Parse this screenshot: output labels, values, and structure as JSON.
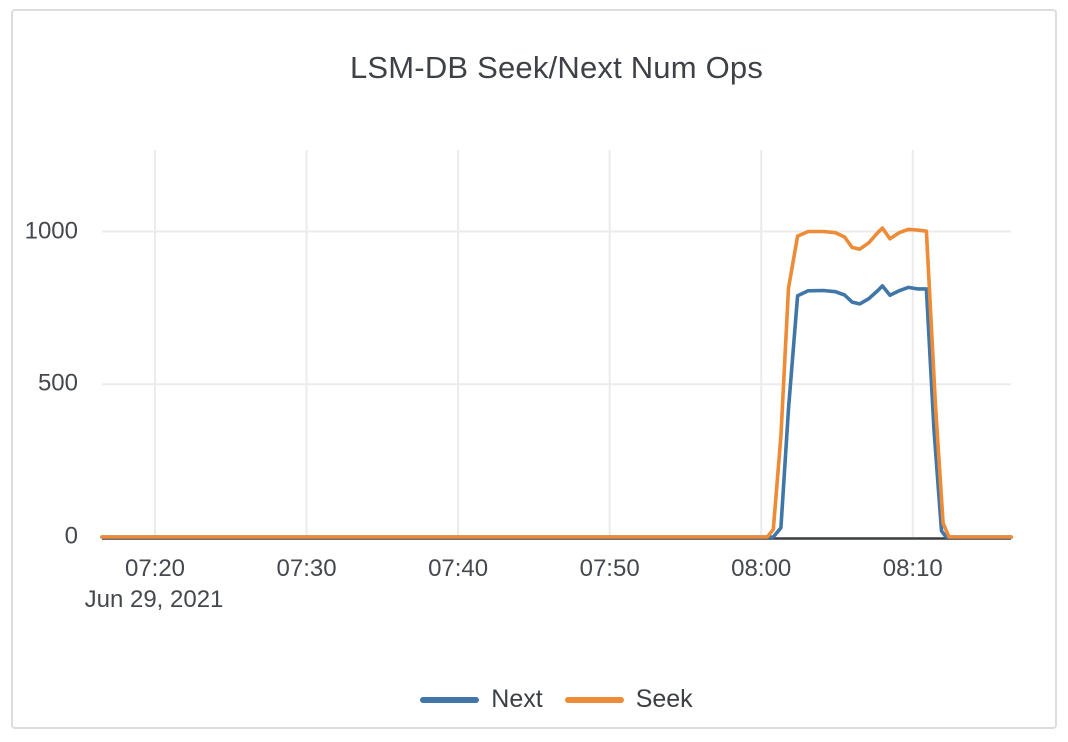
{
  "panel": {
    "background": "#ffffff",
    "border_color": "#dcdde0"
  },
  "chart_data": {
    "type": "line",
    "title": "LSM-DB Seek/Next Num Ops",
    "grid": true,
    "legend_position": "bottom-center",
    "colors": {
      "grid": "#ebebeb",
      "zeroline": "#3a3d40",
      "text": "#45484c"
    },
    "x_axis": {
      "unit": "time (minutes after 07:00), Jun 29, 2021",
      "date_label": "Jun 29, 2021",
      "range_minutes": [
        16.5,
        76.5
      ],
      "ticks": [
        {
          "t": 20,
          "label": "07:20"
        },
        {
          "t": 30,
          "label": "07:30"
        },
        {
          "t": 40,
          "label": "07:40"
        },
        {
          "t": 50,
          "label": "07:50"
        },
        {
          "t": 60,
          "label": "08:00"
        },
        {
          "t": 70,
          "label": "08:10"
        }
      ]
    },
    "y_axis": {
      "range": [
        0,
        1265
      ],
      "ticks": [
        {
          "v": 0,
          "label": "0"
        },
        {
          "v": 500,
          "label": "500"
        },
        {
          "v": 1000,
          "label": "1000"
        }
      ]
    },
    "series": [
      {
        "name": "Next",
        "color": "#4076A8",
        "points": [
          [
            16.5,
            0
          ],
          [
            20,
            0
          ],
          [
            24,
            0
          ],
          [
            28,
            0
          ],
          [
            32,
            0
          ],
          [
            36,
            0
          ],
          [
            40,
            0
          ],
          [
            44,
            0
          ],
          [
            48,
            0
          ],
          [
            52,
            0
          ],
          [
            56,
            0
          ],
          [
            59,
            0
          ],
          [
            60.8,
            0
          ],
          [
            61.3,
            30
          ],
          [
            61.8,
            420
          ],
          [
            62.4,
            790
          ],
          [
            63.1,
            806
          ],
          [
            64.1,
            807
          ],
          [
            64.9,
            803
          ],
          [
            65.5,
            792
          ],
          [
            66.0,
            769
          ],
          [
            66.5,
            763
          ],
          [
            67.1,
            780
          ],
          [
            67.7,
            807
          ],
          [
            68.0,
            822
          ],
          [
            68.5,
            791
          ],
          [
            69.1,
            806
          ],
          [
            69.7,
            817
          ],
          [
            70.3,
            812
          ],
          [
            70.9,
            812
          ],
          [
            71.4,
            350
          ],
          [
            71.9,
            20
          ],
          [
            72.2,
            0
          ],
          [
            73.5,
            0
          ],
          [
            75,
            0
          ],
          [
            76.5,
            0
          ]
        ]
      },
      {
        "name": "Seek",
        "color": "#ED8B36",
        "points": [
          [
            16.5,
            0
          ],
          [
            20,
            0
          ],
          [
            24,
            0
          ],
          [
            28,
            0
          ],
          [
            32,
            0
          ],
          [
            36,
            0
          ],
          [
            40,
            0
          ],
          [
            44,
            0
          ],
          [
            48,
            0
          ],
          [
            52,
            0
          ],
          [
            56,
            0
          ],
          [
            59,
            0
          ],
          [
            60.4,
            0
          ],
          [
            60.8,
            25
          ],
          [
            61.3,
            330
          ],
          [
            61.8,
            815
          ],
          [
            62.4,
            985
          ],
          [
            63.1,
            1000
          ],
          [
            64.1,
            1000
          ],
          [
            64.9,
            996
          ],
          [
            65.5,
            982
          ],
          [
            66.0,
            948
          ],
          [
            66.5,
            942
          ],
          [
            67.1,
            963
          ],
          [
            67.7,
            997
          ],
          [
            68.0,
            1011
          ],
          [
            68.5,
            976
          ],
          [
            69.1,
            996
          ],
          [
            69.7,
            1007
          ],
          [
            70.3,
            1005
          ],
          [
            70.9,
            1001
          ],
          [
            71.5,
            430
          ],
          [
            72.0,
            45
          ],
          [
            72.4,
            0
          ],
          [
            73.5,
            0
          ],
          [
            75,
            0
          ],
          [
            76.5,
            0
          ]
        ]
      }
    ]
  }
}
